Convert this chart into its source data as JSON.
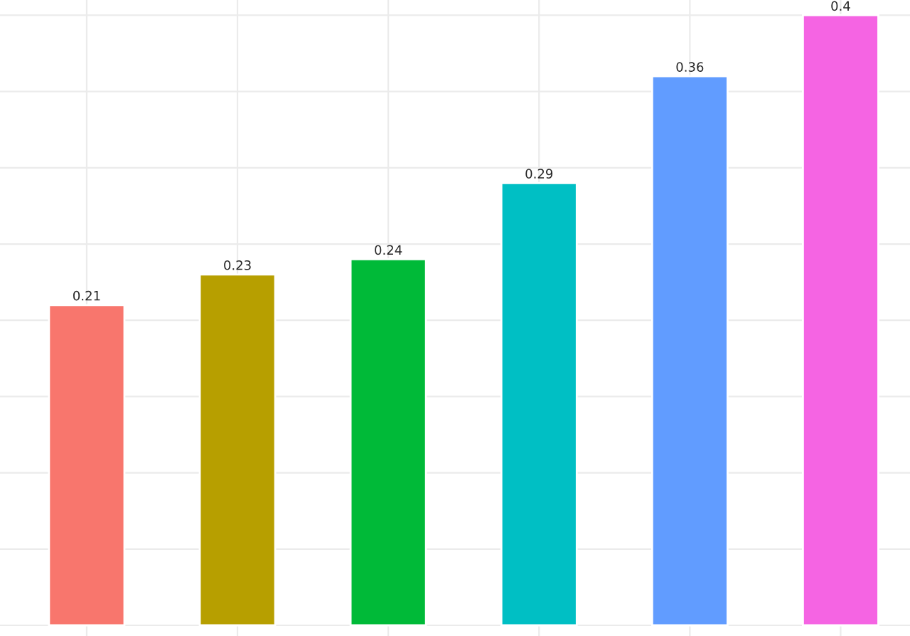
{
  "chart_data": {
    "type": "bar",
    "categories": [
      null,
      null,
      null,
      null,
      null,
      null
    ],
    "values": [
      0.21,
      0.23,
      0.24,
      0.29,
      0.36,
      0.4
    ],
    "colors": [
      "#f8766d",
      "#b79f00",
      "#00ba38",
      "#00bfc4",
      "#619cff",
      "#f564e3"
    ],
    "ylim": [
      -0.007,
      0.41
    ],
    "yticks": [
      {
        "value": 0,
        "label": null
      },
      {
        "value": 0.05,
        "label": null
      },
      {
        "value": 0.1,
        "label": null
      },
      {
        "value": 0.15,
        "label": null
      },
      {
        "value": 0.2,
        "label": null
      },
      {
        "value": 0.25,
        "label": null
      },
      {
        "value": 0.3,
        "label": null
      },
      {
        "value": 0.35,
        "label": null
      },
      {
        "value": 0.4,
        "label": null
      }
    ],
    "data_labels": true,
    "grid": true
  }
}
